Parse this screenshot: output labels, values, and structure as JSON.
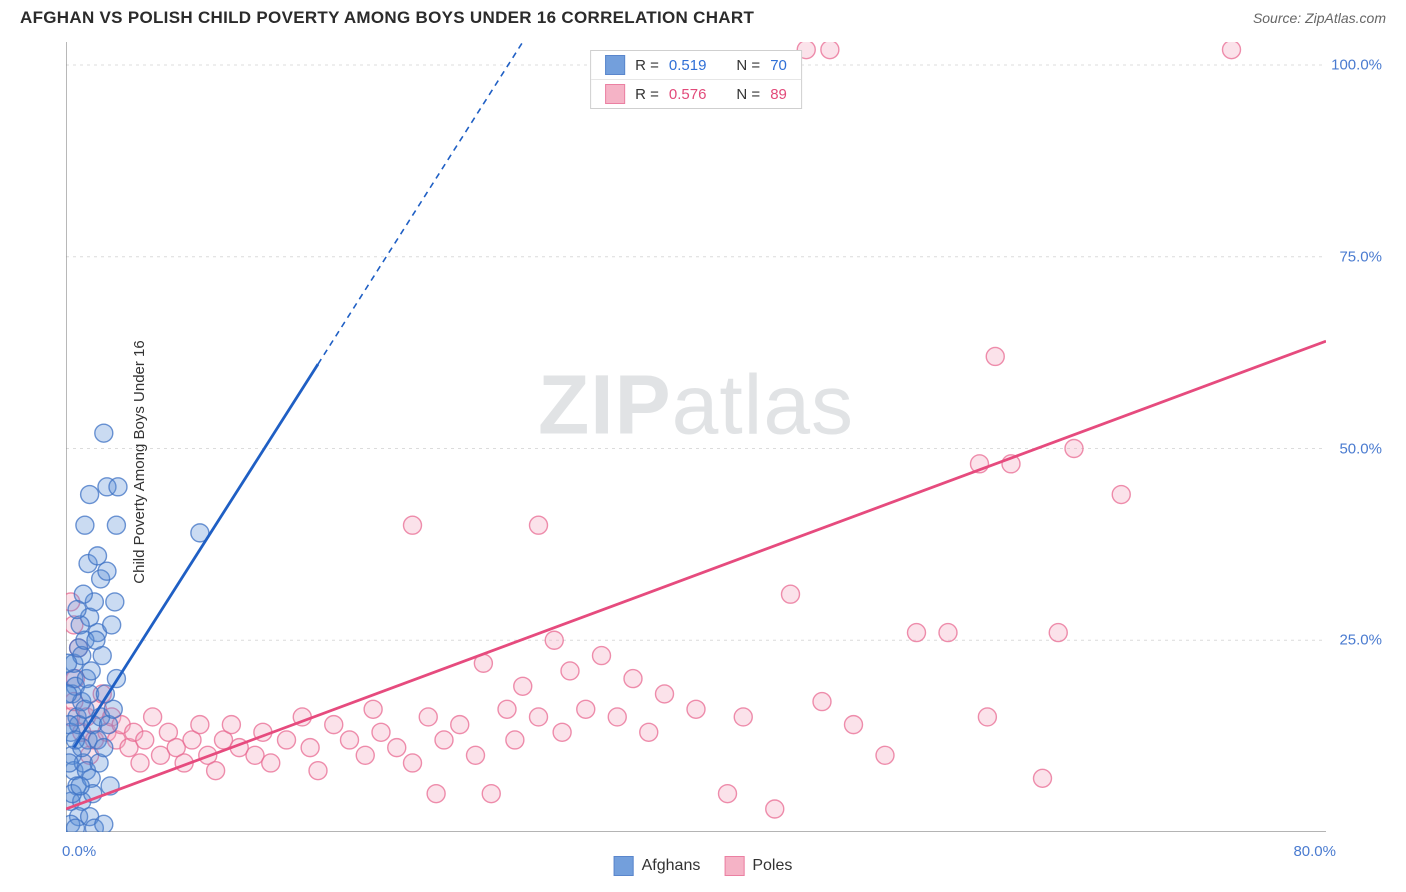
{
  "title": "AFGHAN VS POLISH CHILD POVERTY AMONG BOYS UNDER 16 CORRELATION CHART",
  "source_label": "Source: ZipAtlas.com",
  "ylabel": "Child Poverty Among Boys Under 16",
  "watermark_a": "ZIP",
  "watermark_b": "atlas",
  "chart": {
    "type": "scatter",
    "background_color": "#ffffff",
    "grid_color": "#dcdcdc",
    "axis_color": "#888888",
    "tick_color": "#888888",
    "label_color": "#4a7bd0",
    "xlim": [
      0,
      80
    ],
    "ylim": [
      0,
      103
    ],
    "xticks": [
      0,
      5,
      10,
      15,
      20,
      25,
      30,
      35,
      40,
      45,
      50,
      55,
      60,
      65,
      70,
      75,
      80
    ],
    "xtick_labels": {
      "0": "0.0%",
      "80": "80.0%"
    },
    "yticks": [
      25,
      50,
      75,
      100
    ],
    "ytick_labels": {
      "25": "25.0%",
      "50": "50.0%",
      "75": "75.0%",
      "100": "100.0%"
    },
    "marker_radius": 9,
    "marker_stroke_width": 1.4,
    "marker_fill_opacity": 0.32,
    "trend_line_width": 2.8,
    "dash_pattern": "6,5"
  },
  "series": {
    "afghans": {
      "label": "Afghans",
      "color": "#5b8fd6",
      "stroke": "#3e72c4",
      "line_color": "#1f5fc4",
      "stats": {
        "R": "0.519",
        "N": "70"
      },
      "R_prefix": "R = ",
      "N_prefix": "N = ",
      "trend_solid": {
        "x1": 0.5,
        "y1": 11,
        "x2": 16,
        "y2": 61
      },
      "trend_dash": {
        "x1": 16,
        "y1": 61,
        "x2": 29,
        "y2": 103
      },
      "points": [
        [
          0.4,
          18
        ],
        [
          0.5,
          20
        ],
        [
          0.7,
          15
        ],
        [
          0.3,
          13
        ],
        [
          1.0,
          17
        ],
        [
          0.6,
          19
        ],
        [
          0.8,
          14
        ],
        [
          1.2,
          16
        ],
        [
          0.4,
          10
        ],
        [
          0.5,
          8
        ],
        [
          0.7,
          6
        ],
        [
          1.1,
          9
        ],
        [
          1.4,
          12
        ],
        [
          0.5,
          22
        ],
        [
          0.8,
          24
        ],
        [
          1.0,
          23
        ],
        [
          1.3,
          20
        ],
        [
          1.5,
          18
        ],
        [
          1.7,
          14
        ],
        [
          1.0,
          11
        ],
        [
          1.3,
          8
        ],
        [
          1.6,
          7
        ],
        [
          2.0,
          12
        ],
        [
          2.2,
          15
        ],
        [
          2.5,
          18
        ],
        [
          2.7,
          14
        ],
        [
          3.0,
          16
        ],
        [
          3.2,
          20
        ],
        [
          2.3,
          23
        ],
        [
          2.0,
          26
        ],
        [
          1.5,
          28
        ],
        [
          1.8,
          30
        ],
        [
          2.2,
          33
        ],
        [
          1.4,
          35
        ],
        [
          2.6,
          34
        ],
        [
          3.1,
          30
        ],
        [
          1.2,
          40
        ],
        [
          3.2,
          40
        ],
        [
          2.6,
          45
        ],
        [
          3.3,
          45
        ],
        [
          2.4,
          52
        ],
        [
          8.5,
          39
        ],
        [
          0.3,
          4
        ],
        [
          1.0,
          4
        ],
        [
          1.7,
          5
        ],
        [
          0.8,
          2
        ],
        [
          1.5,
          2
        ],
        [
          0.3,
          1
        ],
        [
          0.6,
          0.5
        ],
        [
          1.8,
          0.5
        ],
        [
          2.4,
          1
        ],
        [
          0.2,
          9
        ],
        [
          0.2,
          14
        ],
        [
          0.1,
          18
        ],
        [
          0.1,
          22
        ],
        [
          0.9,
          27
        ],
        [
          2.9,
          27
        ],
        [
          1.1,
          31
        ],
        [
          2.0,
          36
        ],
        [
          1.5,
          44
        ],
        [
          0.4,
          5
        ],
        [
          0.9,
          6
        ],
        [
          2.1,
          9
        ],
        [
          2.8,
          6
        ],
        [
          1.6,
          21
        ],
        [
          2.4,
          11
        ],
        [
          0.7,
          29
        ],
        [
          1.2,
          25
        ],
        [
          0.6,
          12
        ],
        [
          1.9,
          25
        ]
      ]
    },
    "poles": {
      "label": "Poles",
      "color": "#f4a6bd",
      "stroke": "#e86a92",
      "line_color": "#e64b7e",
      "stats": {
        "R": "0.576",
        "N": "89"
      },
      "R_prefix": "R = ",
      "N_prefix": "N = ",
      "trend_solid": {
        "x1": 0,
        "y1": 3,
        "x2": 80,
        "y2": 64
      },
      "points": [
        [
          0.3,
          15
        ],
        [
          0.5,
          17
        ],
        [
          0.6,
          20
        ],
        [
          0.8,
          24
        ],
        [
          0.5,
          27
        ],
        [
          0.3,
          30
        ],
        [
          1.0,
          13
        ],
        [
          1.3,
          15
        ],
        [
          1.5,
          10
        ],
        [
          1.8,
          12
        ],
        [
          2.0,
          16
        ],
        [
          2.3,
          18
        ],
        [
          2.6,
          13
        ],
        [
          2.9,
          15
        ],
        [
          3.2,
          12
        ],
        [
          3.5,
          14
        ],
        [
          4.0,
          11
        ],
        [
          4.3,
          13
        ],
        [
          4.7,
          9
        ],
        [
          5.0,
          12
        ],
        [
          5.5,
          15
        ],
        [
          6.0,
          10
        ],
        [
          6.5,
          13
        ],
        [
          7.0,
          11
        ],
        [
          7.5,
          9
        ],
        [
          8.0,
          12
        ],
        [
          8.5,
          14
        ],
        [
          9.0,
          10
        ],
        [
          9.5,
          8
        ],
        [
          10,
          12
        ],
        [
          10.5,
          14
        ],
        [
          11,
          11
        ],
        [
          12,
          10
        ],
        [
          12.5,
          13
        ],
        [
          13,
          9
        ],
        [
          14,
          12
        ],
        [
          15,
          15
        ],
        [
          15.5,
          11
        ],
        [
          16,
          8
        ],
        [
          17,
          14
        ],
        [
          18,
          12
        ],
        [
          19,
          10
        ],
        [
          19.5,
          16
        ],
        [
          20,
          13
        ],
        [
          21,
          11
        ],
        [
          22,
          9
        ],
        [
          23,
          15
        ],
        [
          23.5,
          5
        ],
        [
          24,
          12
        ],
        [
          25,
          14
        ],
        [
          26,
          10
        ],
        [
          26.5,
          22
        ],
        [
          27,
          5
        ],
        [
          28,
          16
        ],
        [
          28.5,
          12
        ],
        [
          29,
          19
        ],
        [
          30,
          15
        ],
        [
          31,
          25
        ],
        [
          31.5,
          13
        ],
        [
          32,
          21
        ],
        [
          33,
          16
        ],
        [
          34,
          23
        ],
        [
          35,
          15
        ],
        [
          36,
          20
        ],
        [
          37,
          13
        ],
        [
          38,
          18
        ],
        [
          40,
          16
        ],
        [
          42,
          5
        ],
        [
          43,
          15
        ],
        [
          45,
          3
        ],
        [
          46,
          31
        ],
        [
          48,
          17
        ],
        [
          50,
          14
        ],
        [
          52,
          10
        ],
        [
          54,
          26
        ],
        [
          56,
          26
        ],
        [
          58,
          48
        ],
        [
          58.5,
          15
        ],
        [
          59,
          62
        ],
        [
          60,
          48
        ],
        [
          62,
          7
        ],
        [
          63,
          26
        ],
        [
          64,
          50
        ],
        [
          67,
          44
        ],
        [
          47,
          102
        ],
        [
          48.5,
          102
        ],
        [
          74,
          102
        ],
        [
          22,
          40
        ],
        [
          30,
          40
        ]
      ]
    }
  }
}
